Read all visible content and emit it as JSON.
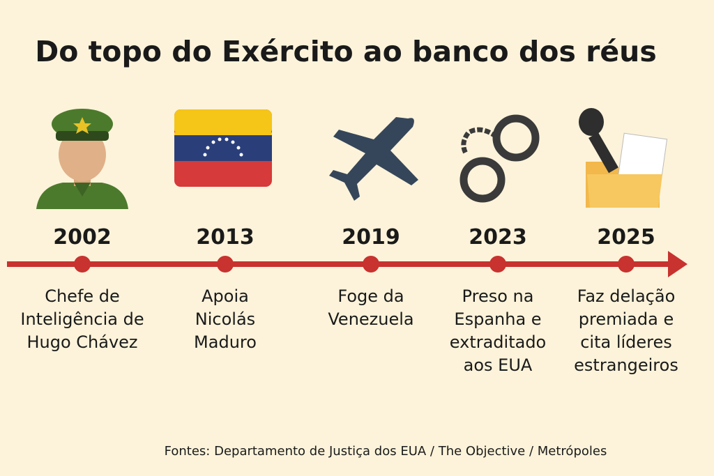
{
  "header": {
    "title": "Do topo do Exército ao banco dos réus"
  },
  "events": [
    {
      "year": "2002",
      "description": [
        "Chefe de",
        "Inteligência de",
        "Hugo Chávez"
      ]
    },
    {
      "year": "2013",
      "description": [
        "Apoia",
        "Nicolás",
        "Maduro"
      ]
    },
    {
      "year": "2019",
      "description": [
        "Foge da",
        "Venezuela"
      ]
    },
    {
      "year": "2023",
      "description": [
        "Preso na",
        "Espanha e",
        "extraditado",
        "aos EUA"
      ]
    },
    {
      "year": "2025",
      "description": [
        "Faz delação",
        "premiada e",
        "cita líderes",
        "estrangeiros"
      ]
    }
  ],
  "footer": {
    "sources": "Fontes: Departamento de Justiça dos EUA / The Objective / Metrópoles"
  }
}
